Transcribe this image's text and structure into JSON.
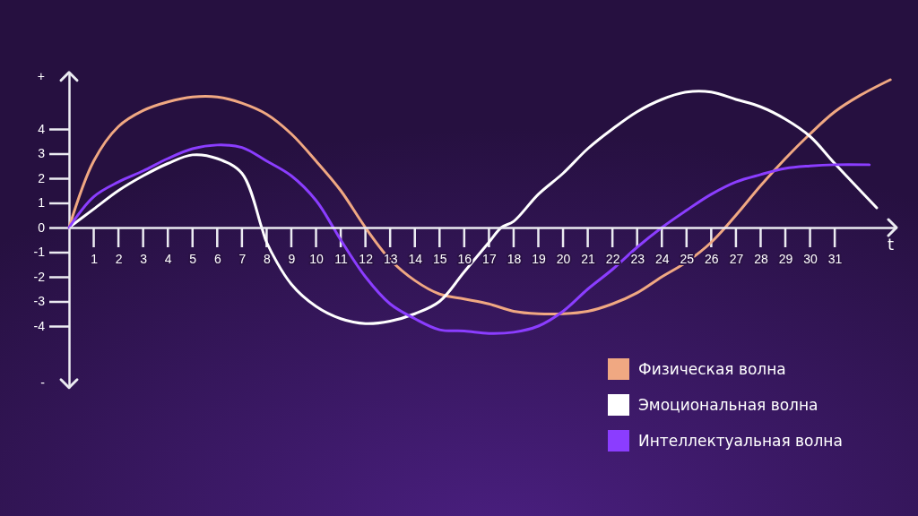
{
  "chart_data": {
    "type": "line",
    "xlabel": "t",
    "x": [
      0,
      1,
      2,
      3,
      4,
      5,
      6,
      7,
      8,
      9,
      10,
      11,
      12,
      13,
      14,
      15,
      16,
      17,
      18,
      19,
      20,
      21,
      22,
      23,
      24,
      25,
      26,
      27,
      28,
      29,
      30,
      31,
      32,
      33.25
    ],
    "xlim": [
      0,
      33.5
    ],
    "xticks": [
      1,
      2,
      3,
      4,
      5,
      6,
      7,
      8,
      9,
      10,
      11,
      12,
      13,
      14,
      15,
      16,
      17,
      18,
      19,
      20,
      21,
      22,
      23,
      24,
      25,
      26,
      27,
      28,
      29,
      30,
      31
    ],
    "ylim": [
      -6.5,
      6.3
    ],
    "yticks": [
      {
        "value": -6.3,
        "label": "-"
      },
      -4,
      -3,
      -2,
      -1,
      0,
      1,
      2,
      3,
      4,
      {
        "value": 6.15,
        "label": "+"
      }
    ],
    "grid": false,
    "legend": "bottom right",
    "marker": "none",
    "line_style": "solid",
    "series": [
      {
        "name": "Физическая волна",
        "color": "#f0a882",
        "values": [
          0,
          2.7,
          4.1,
          4.75,
          5.1,
          5.3,
          5.3,
          5.05,
          4.6,
          3.8,
          2.7,
          1.5,
          0,
          -1.3,
          -2.15,
          -2.7,
          -2.9,
          -3.1,
          -3.4,
          -3.5,
          -3.5,
          -3.4,
          -3.1,
          -2.65,
          -2,
          -1.4,
          -0.6,
          0.5,
          1.7,
          2.8,
          3.8,
          4.7,
          5.35,
          6
        ]
      },
      {
        "name": "Эмоциональная волна",
        "color": "#ffffff",
        "x": [
          0,
          1,
          2,
          3,
          4,
          5,
          6,
          7,
          7.8,
          8,
          9,
          10,
          11,
          12,
          13,
          14,
          15,
          16,
          17,
          17.5,
          18,
          19,
          20,
          21,
          22,
          23,
          24,
          25,
          26,
          27,
          28,
          29,
          30,
          31,
          32.7
        ],
        "values": [
          0,
          0.75,
          1.5,
          2.1,
          2.6,
          2.95,
          2.8,
          2.2,
          0,
          -0.6,
          -2.3,
          -3.2,
          -3.7,
          -3.9,
          -3.8,
          -3.5,
          -3,
          -1.8,
          -0.6,
          0,
          0.25,
          1.35,
          2.2,
          3.2,
          4,
          4.7,
          5.2,
          5.5,
          5.5,
          5.2,
          4.9,
          4.4,
          3.7,
          2.6,
          0.8
        ]
      },
      {
        "name": "Интеллектуальная волна",
        "color": "#8b3dff",
        "x": [
          0,
          1,
          2,
          3,
          4,
          5,
          6,
          7,
          8,
          9,
          10,
          10.7,
          11,
          12,
          13,
          14,
          15,
          16,
          17,
          18,
          19,
          20,
          21,
          22,
          23,
          24,
          25,
          26,
          27,
          28,
          29,
          30,
          31,
          32.4
        ],
        "values": [
          0,
          1.25,
          1.85,
          2.3,
          2.8,
          3.2,
          3.35,
          3.25,
          2.7,
          2.1,
          1.1,
          0,
          -0.5,
          -2,
          -3.1,
          -3.7,
          -4.15,
          -4.2,
          -4.3,
          -4.25,
          -4,
          -3.4,
          -2.5,
          -1.7,
          -0.8,
          0,
          0.7,
          1.35,
          1.85,
          2.15,
          2.4,
          2.5,
          2.55,
          2.55
        ]
      }
    ]
  }
}
